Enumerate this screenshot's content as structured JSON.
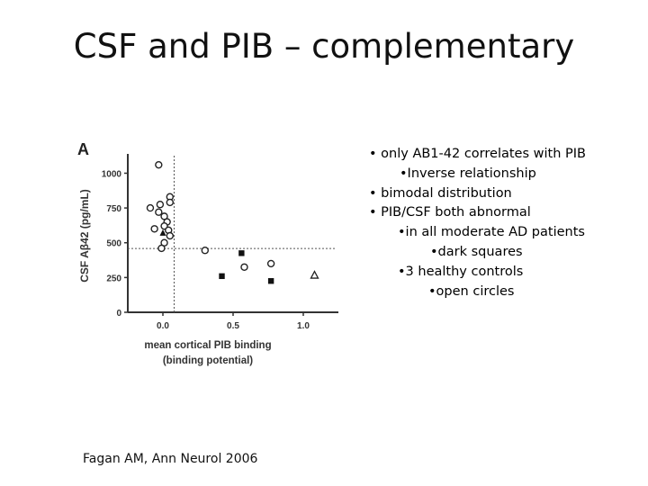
{
  "slide": {
    "title": "CSF and PIB – complementary"
  },
  "bullets": [
    "• only AB1-42 correlates with PIB",
    "•Inverse relationship",
    "• bimodal distribution",
    "• PIB/CSF both abnormal",
    "•in all moderate AD patients",
    "•dark squares",
    "•3 healthy controls",
    "•open circles"
  ],
  "citation": {
    "author": "Fagan AM, Ann Neurol",
    "year": "2006"
  },
  "chart_data": {
    "type": "scatter",
    "panel_label": "A",
    "ylabel": "CSF Aβ42 (pg/mL)",
    "xlabel_line1": "mean cortical PIB binding",
    "xlabel_line2": "(binding potential)",
    "xlim": [
      -0.25,
      1.25
    ],
    "ylim": [
      0,
      1100
    ],
    "xticks": [
      0.0,
      0.5,
      1.0
    ],
    "xtick_labels": [
      "0.0",
      "0.5",
      "1.0"
    ],
    "yticks": [
      0,
      250,
      500,
      750,
      1000
    ],
    "ytick_labels": [
      "0",
      "250",
      "500",
      "750",
      "1000"
    ],
    "threshold_x": 0.08,
    "threshold_y": 459,
    "series": [
      {
        "marker": "open-circle",
        "points": [
          [
            -0.03,
            1060
          ],
          [
            -0.09,
            750
          ],
          [
            -0.02,
            775
          ],
          [
            0.05,
            830
          ],
          [
            0.05,
            790
          ],
          [
            -0.03,
            720
          ],
          [
            0.01,
            690
          ],
          [
            0.03,
            650
          ],
          [
            -0.06,
            600
          ],
          [
            0.01,
            620
          ],
          [
            0.04,
            590
          ],
          [
            0.05,
            550
          ],
          [
            0.01,
            500
          ],
          [
            -0.01,
            460
          ],
          [
            0.3,
            445
          ],
          [
            0.58,
            325
          ],
          [
            0.77,
            350
          ]
        ]
      },
      {
        "marker": "filled-square",
        "points": [
          [
            0.42,
            260
          ],
          [
            0.56,
            425
          ],
          [
            0.77,
            225
          ]
        ]
      },
      {
        "marker": "open-triangle",
        "points": [
          [
            1.08,
            265
          ]
        ]
      },
      {
        "marker": "filled-triangle",
        "points": [
          [
            0.0,
            570
          ]
        ]
      }
    ]
  }
}
